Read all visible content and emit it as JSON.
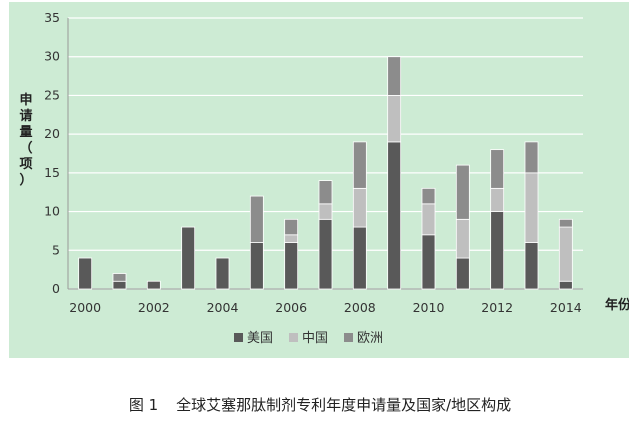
{
  "chart_data": {
    "type": "bar",
    "stacked": true,
    "categories": [
      "2000",
      "2001",
      "2002",
      "2003",
      "2004",
      "2005",
      "2006",
      "2007",
      "2008",
      "2009",
      "2010",
      "2011",
      "2012",
      "2013",
      "2014"
    ],
    "series": [
      {
        "name": "美国",
        "color": "#595959",
        "values": [
          4,
          1,
          1,
          8,
          4,
          6,
          6,
          9,
          8,
          19,
          7,
          4,
          10,
          6,
          1
        ]
      },
      {
        "name": "中国",
        "color": "#bfbfbf",
        "values": [
          0,
          0,
          0,
          0,
          0,
          0,
          1,
          2,
          5,
          6,
          4,
          5,
          3,
          9,
          7
        ]
      },
      {
        "name": "欧洲",
        "color": "#8c8c8c",
        "values": [
          0,
          1,
          0,
          0,
          0,
          6,
          2,
          3,
          6,
          5,
          2,
          7,
          5,
          4,
          1
        ]
      }
    ],
    "x_tick_labels": [
      "2000",
      "2002",
      "2004",
      "2006",
      "2008",
      "2010",
      "2012",
      "2014"
    ],
    "y_ticks": [
      0,
      5,
      10,
      15,
      20,
      25,
      30,
      35
    ],
    "ylim": [
      0,
      35
    ],
    "ylabel": "申请量（项）",
    "xlabel": "年份",
    "grid": true,
    "legend_position": "bottom",
    "background_color": "#cdebd4"
  },
  "caption": {
    "figure_number": "图 1",
    "text": "全球艾塞那肽制剂专利年度申请量及国家/地区构成"
  }
}
